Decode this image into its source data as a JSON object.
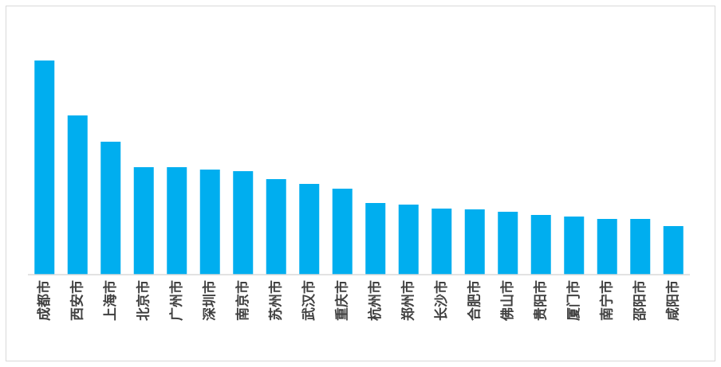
{
  "chart_data": {
    "type": "bar",
    "categories": [
      "成都市",
      "西安市",
      "上海市",
      "北京市",
      "广州市",
      "深圳市",
      "南京市",
      "苏州市",
      "武汉市",
      "重庆市",
      "杭州市",
      "郑州市",
      "长沙市",
      "合肥市",
      "佛山市",
      "贵阳市",
      "厦门市",
      "南宁市",
      "邵阳市",
      "咸阳市"
    ],
    "values": [
      269,
      200,
      167,
      135,
      135,
      132,
      130,
      120,
      114,
      108,
      90,
      88,
      83,
      82,
      79,
      75,
      73,
      70,
      70,
      61
    ],
    "color": "#00aeef",
    "ylim": [
      0,
      300
    ]
  }
}
